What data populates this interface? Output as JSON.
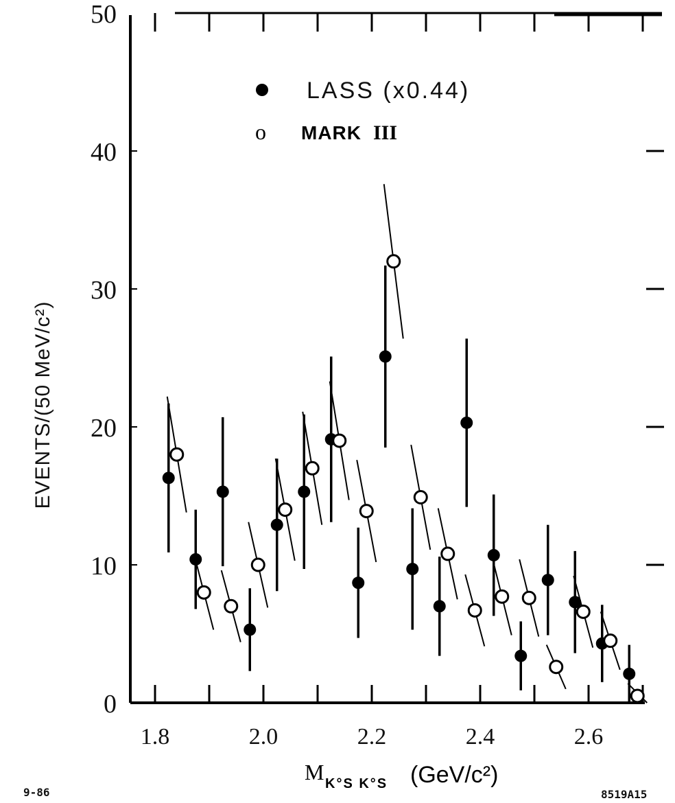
{
  "chart_data": {
    "type": "scatter",
    "xlabel": "M",
    "xlabel_sub": "K°S K°S",
    "xlabel_unit": "(GeV/c²)",
    "ylabel": "EVENTS/(50 MeV/c²)",
    "xlim": [
      1.74,
      2.76
    ],
    "ylim": [
      0,
      50
    ],
    "x_ticks": [
      "1.8",
      "2.0",
      "2.2",
      "2.4",
      "2.6"
    ],
    "y_ticks": [
      "0",
      "10",
      "20",
      "30",
      "40",
      "50"
    ],
    "legend": {
      "position": "top-center"
    },
    "series": [
      {
        "name": "LASS (x0.44)",
        "marker": "filled-circle",
        "points": [
          {
            "x": 1.825,
            "y": 16.3,
            "err": 5.4
          },
          {
            "x": 1.875,
            "y": 10.4,
            "err": 3.6
          },
          {
            "x": 1.925,
            "y": 15.3,
            "err": 5.4
          },
          {
            "x": 1.975,
            "y": 5.3,
            "err": 3.0
          },
          {
            "x": 2.025,
            "y": 12.9,
            "err": 4.8
          },
          {
            "x": 2.075,
            "y": 15.3,
            "err": 5.6
          },
          {
            "x": 2.125,
            "y": 19.1,
            "err": 6.0
          },
          {
            "x": 2.175,
            "y": 8.7,
            "err": 4.0
          },
          {
            "x": 2.225,
            "y": 25.1,
            "err": 6.6
          },
          {
            "x": 2.275,
            "y": 9.7,
            "err": 4.4
          },
          {
            "x": 2.325,
            "y": 7.0,
            "err": 3.6
          },
          {
            "x": 2.375,
            "y": 20.3,
            "err": 6.1
          },
          {
            "x": 2.425,
            "y": 10.7,
            "err": 4.4
          },
          {
            "x": 2.475,
            "y": 3.4,
            "err": 2.5
          },
          {
            "x": 2.525,
            "y": 8.9,
            "err": 4.0
          },
          {
            "x": 2.575,
            "y": 7.3,
            "err": 3.7
          },
          {
            "x": 2.625,
            "y": 4.3,
            "err": 2.8
          },
          {
            "x": 2.675,
            "y": 2.1,
            "err": 2.1
          }
        ]
      },
      {
        "name": "MARK III",
        "marker": "open-circle",
        "points": [
          {
            "x": 1.825,
            "y": 18.0,
            "err": 4.2
          },
          {
            "x": 1.875,
            "y": 8.0,
            "err": 2.7
          },
          {
            "x": 1.925,
            "y": 7.0,
            "err": 2.6
          },
          {
            "x": 1.975,
            "y": 10.0,
            "err": 3.1
          },
          {
            "x": 2.025,
            "y": 14.0,
            "err": 3.7
          },
          {
            "x": 2.075,
            "y": 17.0,
            "err": 4.1
          },
          {
            "x": 2.125,
            "y": 19.0,
            "err": 4.3
          },
          {
            "x": 2.175,
            "y": 13.9,
            "err": 3.7
          },
          {
            "x": 2.225,
            "y": 32.0,
            "err": 5.6
          },
          {
            "x": 2.275,
            "y": 14.9,
            "err": 3.8
          },
          {
            "x": 2.325,
            "y": 10.8,
            "err": 3.3
          },
          {
            "x": 2.375,
            "y": 6.7,
            "err": 2.6
          },
          {
            "x": 2.425,
            "y": 7.7,
            "err": 2.8
          },
          {
            "x": 2.475,
            "y": 7.6,
            "err": 2.8
          },
          {
            "x": 2.525,
            "y": 2.6,
            "err": 1.6
          },
          {
            "x": 2.575,
            "y": 6.6,
            "err": 2.6
          },
          {
            "x": 2.625,
            "y": 4.5,
            "err": 2.1
          },
          {
            "x": 2.675,
            "y": 0.5,
            "err": 0.9
          }
        ]
      }
    ]
  },
  "legend_labels": {
    "lass": "LASS (x0.44)",
    "mark3_prefix": "MARK",
    "mark3_roman": "III",
    "open_marker": "o"
  },
  "corner_labels": {
    "date": "9-86",
    "figure_id": "8519A15"
  }
}
